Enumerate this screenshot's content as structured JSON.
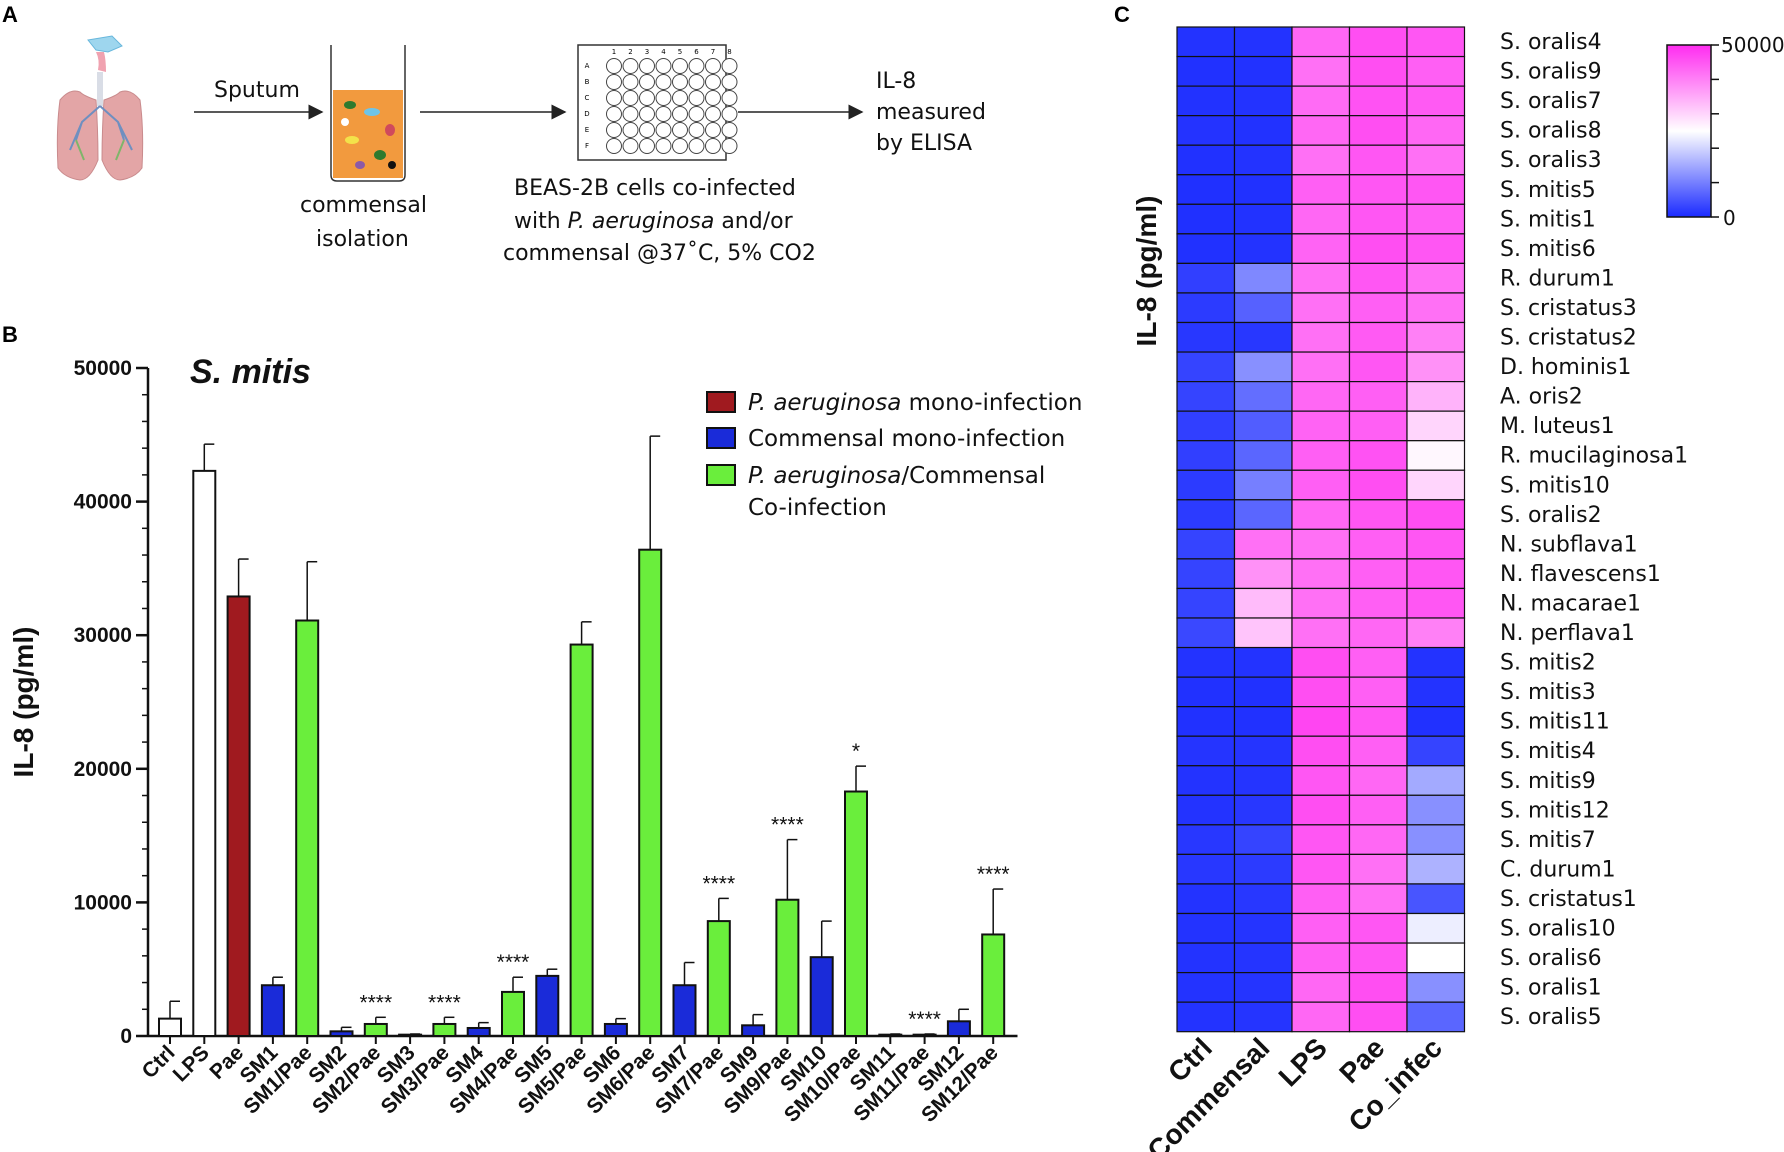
{
  "panels": {
    "a": "A",
    "b": "B",
    "c": "C"
  },
  "schematic": {
    "sputum_label": "Sputum",
    "isolation_line1": "commensal",
    "isolation_line2": "isolation",
    "plate_rows": [
      "A",
      "B",
      "C",
      "D",
      "E",
      "F"
    ],
    "plate_cols": [
      "1",
      "2",
      "3",
      "4",
      "5",
      "6",
      "7",
      "8"
    ],
    "cells_line1": "BEAS-2B cells co-infected",
    "cells_line2_prefix": "with ",
    "cells_line2_italic": "P. aeruginosa",
    "cells_line2_suffix": " and/or",
    "cells_line3": "commensal @37˚C, 5% CO2",
    "result_line1": "IL-8",
    "result_line2": "measured",
    "result_line3": "by ELISA"
  },
  "colors": {
    "pae": "#a01a1f",
    "commensal": "#1a2bd9",
    "coinfection": "#6aee3c",
    "control": "#ffffff",
    "heat_low": "#1a2aff",
    "heat_mid": "#ffffff",
    "heat_high": "#ff2cf0"
  },
  "chart_data": [
    {
      "type": "bar",
      "title": "S. mitis",
      "ylabel": "IL-8 (pg/ml)",
      "xlabel": "",
      "ylim": [
        0,
        50000
      ],
      "yticks": [
        0,
        10000,
        20000,
        30000,
        40000,
        50000
      ],
      "legend": [
        {
          "italic": "P. aeruginosa",
          "text": " mono-infection",
          "group": "pae"
        },
        {
          "italic": "",
          "text": "Commensal mono-infection",
          "group": "commensal"
        },
        {
          "italic": "P. aeruginosa",
          "text": "/Commensal",
          "text2": "Co-infection",
          "group": "coinfection"
        }
      ],
      "categories": [
        "Ctrl",
        "LPS",
        "Pae",
        "SM1",
        "SM1/Pae",
        "SM2",
        "SM2/Pae",
        "SM3",
        "SM3/Pae",
        "SM4",
        "SM4/Pae",
        "SM5",
        "SM5/Pae",
        "SM6",
        "SM6/Pae",
        "SM7",
        "SM7/Pae",
        "SM9",
        "SM9/Pae",
        "SM10",
        "SM10/Pae",
        "SM11",
        "SM11/Pae",
        "SM12",
        "SM12/Pae"
      ],
      "groups": [
        "control",
        "control",
        "pae",
        "commensal",
        "coinfection",
        "commensal",
        "coinfection",
        "commensal",
        "coinfection",
        "commensal",
        "coinfection",
        "commensal",
        "coinfection",
        "commensal",
        "coinfection",
        "commensal",
        "coinfection",
        "commensal",
        "coinfection",
        "commensal",
        "coinfection",
        "commensal",
        "coinfection",
        "commensal",
        "coinfection"
      ],
      "values": [
        1300,
        42300,
        32900,
        3800,
        31100,
        350,
        900,
        100,
        900,
        600,
        3300,
        4500,
        29300,
        900,
        36400,
        3800,
        8600,
        800,
        10200,
        5900,
        18300,
        100,
        100,
        1100,
        7600
      ],
      "errors": [
        1300,
        2000,
        2800,
        600,
        4400,
        300,
        500,
        50,
        500,
        400,
        1100,
        500,
        1700,
        400,
        8500,
        1700,
        1700,
        800,
        4500,
        2700,
        1900,
        50,
        50,
        900,
        3400
      ],
      "significance": [
        "",
        "",
        "",
        "",
        "",
        "",
        "****",
        "",
        "****",
        "",
        "****",
        "",
        "",
        "",
        "",
        "",
        "****",
        "",
        "****",
        "",
        "*",
        "",
        "****",
        "",
        "****"
      ]
    },
    {
      "type": "heatmap",
      "title": "",
      "ylabel": "IL-8 (pg/ml)",
      "columns": [
        "Ctrl",
        "Commensal",
        "LPS",
        "Pae",
        "Co_infec"
      ],
      "rows": [
        "S. oralis4",
        "S. oralis9",
        "S. oralis7",
        "S. oralis8",
        "S. oralis3",
        "S. mitis5",
        "S. mitis1",
        "S. mitis6",
        "R. durum1",
        "S. cristatus3",
        "S. cristatus2",
        "D. hominis1",
        "A. oris2",
        "M. luteus1",
        "R. mucilaginosa1",
        "S. mitis10",
        "S. oralis2",
        "N. subflava1",
        "N. flavescens1",
        "N. macarae1",
        "N. perflava1",
        "S. mitis2",
        "S. mitis3",
        "S. mitis11",
        "S. mitis4",
        "S. mitis9",
        "S. mitis12",
        "S. mitis7",
        "C. durum1",
        "S. cristatus1",
        "S. oralis10",
        "S. oralis6",
        "S. oralis1",
        "S. oralis5"
      ],
      "values": [
        [
          1000,
          1000,
          43000,
          46000,
          45000
        ],
        [
          800,
          900,
          42000,
          46000,
          44000
        ],
        [
          900,
          1000,
          42500,
          45500,
          44500
        ],
        [
          1100,
          900,
          43000,
          46000,
          43000
        ],
        [
          800,
          1000,
          42000,
          45000,
          42000
        ],
        [
          700,
          800,
          44000,
          45000,
          45000
        ],
        [
          700,
          900,
          43000,
          45000,
          44000
        ],
        [
          800,
          1000,
          43500,
          46000,
          45000
        ],
        [
          2500,
          11000,
          42000,
          45000,
          42000
        ],
        [
          2000,
          6500,
          42000,
          44000,
          42000
        ],
        [
          1500,
          1500,
          42000,
          44500,
          40000
        ],
        [
          3000,
          12000,
          42000,
          45000,
          38000
        ],
        [
          3000,
          8000,
          43000,
          44000,
          34000
        ],
        [
          2500,
          6000,
          43500,
          44000,
          30000
        ],
        [
          2500,
          7000,
          44000,
          45500,
          26000
        ],
        [
          2000,
          10000,
          44000,
          46000,
          30000
        ],
        [
          2000,
          7000,
          43000,
          45000,
          46000
        ],
        [
          3000,
          42000,
          42000,
          44000,
          45000
        ],
        [
          3000,
          38000,
          42000,
          44000,
          45000
        ],
        [
          3000,
          33000,
          42000,
          44000,
          45000
        ],
        [
          3500,
          32000,
          42000,
          43000,
          40000
        ],
        [
          1000,
          1000,
          46000,
          44000,
          1000
        ],
        [
          800,
          800,
          46000,
          44000,
          1000
        ],
        [
          800,
          800,
          47000,
          45000,
          800
        ],
        [
          1200,
          1200,
          46000,
          44000,
          3000
        ],
        [
          1000,
          1200,
          45000,
          43000,
          15000
        ],
        [
          1000,
          1500,
          46000,
          44000,
          12000
        ],
        [
          1500,
          3000,
          45000,
          43000,
          12000
        ],
        [
          1500,
          2000,
          45000,
          42000,
          16000
        ],
        [
          1000,
          1500,
          44000,
          42000,
          5000
        ],
        [
          1000,
          1200,
          44000,
          45000,
          23000
        ],
        [
          1000,
          1200,
          44000,
          45000,
          25000
        ],
        [
          1000,
          1200,
          43000,
          46000,
          12000
        ],
        [
          1000,
          1200,
          43000,
          46000,
          7000
        ]
      ],
      "colorbar": {
        "min": 0,
        "max": 50000,
        "min_label": "0",
        "max_label": "50000"
      }
    }
  ]
}
